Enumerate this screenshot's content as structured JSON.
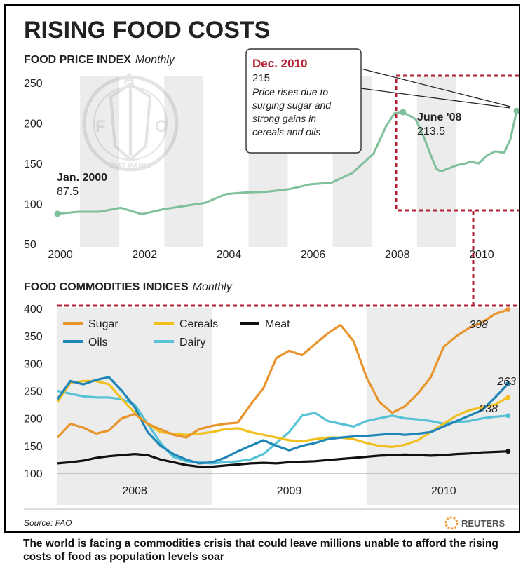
{
  "header": {
    "title": "RISING FOOD COSTS"
  },
  "colors": {
    "index_line": "#7fbf9a",
    "sugar": "#e8952e",
    "oils": "#1f86b7",
    "cereals": "#f0c020",
    "dairy": "#56c2d6",
    "meat": "#111111",
    "highlight": "#b22234",
    "band": "#ececec"
  },
  "chart_data": [
    {
      "type": "line",
      "title": "FOOD PRICE INDEX",
      "subtitle": "Monthly",
      "ylim": [
        50,
        250
      ],
      "yticks": [
        "250",
        "200",
        "150",
        "100",
        "50"
      ],
      "xlim": [
        2000,
        2011
      ],
      "xticks": [
        "2000",
        "2002",
        "2004",
        "2006",
        "2008",
        "2010"
      ],
      "series": [
        {
          "x": [
            2000.0,
            2000.5,
            2001.0,
            2001.5,
            2002.0,
            2002.5,
            2003.0,
            2003.5,
            2004.0,
            2004.5,
            2005.0,
            2005.5,
            2006.0,
            2006.5,
            2007.0,
            2007.5,
            2007.8,
            2008.0,
            2008.2,
            2008.5,
            2008.7,
            2008.9,
            2009.0,
            2009.1,
            2009.3,
            2009.5,
            2009.7,
            2009.8,
            2010.0,
            2010.2,
            2010.4,
            2010.6,
            2010.75,
            2010.9
          ],
          "values": [
            87.5,
            90,
            90,
            95,
            87,
            93,
            97,
            101,
            112,
            114,
            115,
            118,
            124,
            126,
            138,
            162,
            196,
            212,
            213.5,
            205,
            182,
            155,
            143,
            140,
            144,
            148,
            150,
            152,
            150,
            160,
            165,
            163,
            180,
            215
          ]
        }
      ],
      "annotations": [
        {
          "label": "Jan. 2000",
          "value": "87.5"
        },
        {
          "label": "Dec. 2010",
          "value": "215",
          "note": "Price rises due to surging sugar and strong gains in cereals and oils"
        },
        {
          "label": "June '08",
          "value": "213.5"
        }
      ]
    },
    {
      "type": "line",
      "title": "FOOD COMMODITIES INDICES",
      "subtitle": "Monthly",
      "ylim": [
        100,
        400
      ],
      "yticks": [
        "400",
        "350",
        "300",
        "250",
        "200",
        "150",
        "100"
      ],
      "xlim": [
        2008.0,
        2011.0
      ],
      "xticks": [
        "2008",
        "2009",
        "2010"
      ],
      "x": [
        2008.0,
        2008.083,
        2008.167,
        2008.25,
        2008.333,
        2008.417,
        2008.5,
        2008.583,
        2008.667,
        2008.75,
        2008.833,
        2008.917,
        2009.0,
        2009.083,
        2009.167,
        2009.25,
        2009.333,
        2009.417,
        2009.5,
        2009.583,
        2009.667,
        2009.75,
        2009.833,
        2009.917,
        2010.0,
        2010.083,
        2010.167,
        2010.25,
        2010.333,
        2010.417,
        2010.5,
        2010.583,
        2010.667,
        2010.75,
        2010.833,
        2010.917
      ],
      "series": [
        {
          "name": "Sugar",
          "values": [
            165,
            190,
            183,
            172,
            178,
            200,
            208,
            190,
            180,
            170,
            165,
            180,
            186,
            190,
            192,
            225,
            255,
            310,
            323,
            315,
            335,
            355,
            370,
            340,
            275,
            230,
            210,
            222,
            245,
            275,
            330,
            350,
            365,
            375,
            390,
            398
          ]
        },
        {
          "name": "Oils",
          "values": [
            235,
            268,
            262,
            270,
            275,
            250,
            220,
            175,
            150,
            135,
            125,
            118,
            120,
            128,
            140,
            150,
            160,
            150,
            142,
            150,
            155,
            162,
            165,
            167,
            168,
            170,
            172,
            170,
            172,
            175,
            185,
            195,
            205,
            215,
            238,
            263
          ]
        },
        {
          "name": "Cereals",
          "values": [
            230,
            265,
            268,
            268,
            262,
            235,
            210,
            190,
            175,
            172,
            170,
            172,
            175,
            180,
            182,
            175,
            170,
            165,
            160,
            158,
            162,
            165,
            165,
            162,
            155,
            150,
            148,
            152,
            160,
            175,
            190,
            205,
            215,
            220,
            225,
            238
          ]
        },
        {
          "name": "Dairy",
          "values": [
            250,
            245,
            240,
            238,
            238,
            235,
            225,
            190,
            155,
            130,
            122,
            120,
            118,
            120,
            122,
            125,
            135,
            155,
            175,
            205,
            210,
            195,
            190,
            185,
            195,
            200,
            205,
            200,
            198,
            195,
            190,
            193,
            195,
            200,
            203,
            205
          ]
        },
        {
          "name": "Meat",
          "values": [
            118,
            120,
            123,
            128,
            131,
            133,
            135,
            133,
            125,
            120,
            115,
            112,
            112,
            114,
            116,
            118,
            119,
            118,
            120,
            121,
            122,
            124,
            126,
            128,
            130,
            132,
            133,
            134,
            133,
            132,
            133,
            135,
            136,
            138,
            139,
            140
          ]
        }
      ],
      "annotations": [
        {
          "series": "Sugar",
          "value": "398"
        },
        {
          "series": "Oils",
          "value": "263"
        },
        {
          "series": "Cereals",
          "value": "238"
        }
      ]
    }
  ],
  "footer": {
    "source": "Source: FAO",
    "brand": "REUTERS"
  },
  "caption": "The world is facing a commodities crisis that could leave millions unable to afford the rising costs of food as population levels soar"
}
